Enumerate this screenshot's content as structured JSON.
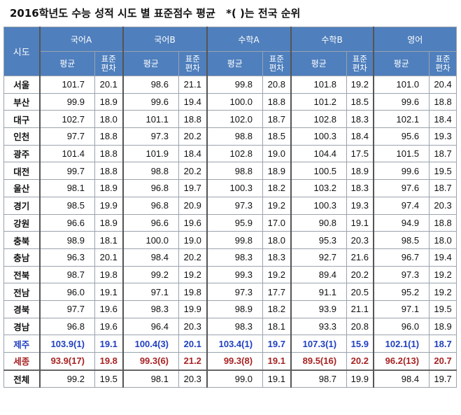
{
  "title": "2016학년도 수능 성적 시도 별 표준점수 평균",
  "note": "*( )는 전국 순위",
  "header": {
    "sido": "시도",
    "subjects": [
      "국어A",
      "국어B",
      "수학A",
      "수학B",
      "영어"
    ],
    "avg": "평균",
    "sd": "표준편차"
  },
  "rows": [
    {
      "name": "서울",
      "cells": [
        "101.7",
        "20.1",
        "98.6",
        "21.1",
        "99.8",
        "20.8",
        "101.8",
        "19.2",
        "101.0",
        "20.4"
      ]
    },
    {
      "name": "부산",
      "cells": [
        "99.9",
        "18.9",
        "99.6",
        "19.4",
        "100.0",
        "18.8",
        "101.2",
        "18.5",
        "99.6",
        "18.8"
      ]
    },
    {
      "name": "대구",
      "cells": [
        "102.7",
        "18.0",
        "101.1",
        "18.8",
        "102.0",
        "18.7",
        "102.8",
        "18.3",
        "102.1",
        "18.4"
      ]
    },
    {
      "name": "인천",
      "cells": [
        "97.7",
        "18.8",
        "97.3",
        "20.2",
        "98.8",
        "18.5",
        "100.3",
        "18.4",
        "95.6",
        "19.3"
      ]
    },
    {
      "name": "광주",
      "cells": [
        "101.4",
        "18.8",
        "101.9",
        "18.4",
        "102.8",
        "19.0",
        "104.4",
        "17.5",
        "101.5",
        "18.7"
      ]
    },
    {
      "name": "대전",
      "cells": [
        "99.7",
        "18.8",
        "98.8",
        "20.2",
        "98.8",
        "18.9",
        "100.5",
        "18.9",
        "99.6",
        "19.5"
      ]
    },
    {
      "name": "울산",
      "cells": [
        "98.1",
        "18.9",
        "96.8",
        "19.7",
        "100.3",
        "18.2",
        "103.2",
        "18.3",
        "97.6",
        "18.7"
      ]
    },
    {
      "name": "경기",
      "cells": [
        "98.5",
        "19.9",
        "96.8",
        "20.9",
        "97.3",
        "19.2",
        "100.3",
        "19.3",
        "97.4",
        "20.3"
      ]
    },
    {
      "name": "강원",
      "cells": [
        "96.6",
        "18.9",
        "96.6",
        "19.6",
        "95.9",
        "17.0",
        "90.8",
        "19.1",
        "94.9",
        "18.8"
      ]
    },
    {
      "name": "충북",
      "cells": [
        "98.9",
        "18.1",
        "100.0",
        "19.0",
        "99.8",
        "18.0",
        "95.3",
        "20.3",
        "98.5",
        "18.0"
      ]
    },
    {
      "name": "충남",
      "cells": [
        "96.3",
        "20.1",
        "98.4",
        "20.2",
        "98.3",
        "18.3",
        "92.7",
        "21.6",
        "96.7",
        "19.4"
      ]
    },
    {
      "name": "전북",
      "cells": [
        "98.7",
        "19.8",
        "99.2",
        "19.2",
        "99.3",
        "19.2",
        "89.4",
        "20.2",
        "97.3",
        "19.2"
      ]
    },
    {
      "name": "전남",
      "cells": [
        "96.0",
        "19.1",
        "97.1",
        "19.8",
        "97.3",
        "17.7",
        "91.1",
        "20.5",
        "95.2",
        "19.2"
      ]
    },
    {
      "name": "경북",
      "cells": [
        "97.7",
        "19.6",
        "98.3",
        "19.9",
        "98.9",
        "18.2",
        "93.9",
        "21.1",
        "97.1",
        "19.5"
      ]
    },
    {
      "name": "경남",
      "cells": [
        "96.8",
        "19.6",
        "96.4",
        "20.3",
        "98.3",
        "18.1",
        "93.3",
        "20.8",
        "96.0",
        "18.9"
      ]
    },
    {
      "name": "제주",
      "cells": [
        "103.9(1)",
        "19.1",
        "100.4(3)",
        "20.1",
        "103.4(1)",
        "19.7",
        "107.3(1)",
        "15.9",
        "102.1(1)",
        "18.7"
      ]
    },
    {
      "name": "세종",
      "cells": [
        "93.9(17)",
        "19.8",
        "99.3(6)",
        "21.2",
        "99.3(8)",
        "19.1",
        "89.5(16)",
        "20.2",
        "96.2(13)",
        "20.7"
      ]
    },
    {
      "name": "전체",
      "cells": [
        "99.2",
        "19.5",
        "98.1",
        "20.3",
        "99.0",
        "19.1",
        "98.7",
        "19.9",
        "98.4",
        "19.7"
      ]
    }
  ]
}
